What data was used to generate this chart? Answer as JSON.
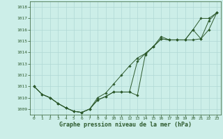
{
  "background_color": "#cceee8",
  "grid_color": "#b0d8d4",
  "line_color": "#2d5a2d",
  "marker_color": "#2d5a2d",
  "xlabel": "Graphe pression niveau de la mer (hPa)",
  "xlabel_fontsize": 6.0,
  "ylim": [
    1008.5,
    1018.5
  ],
  "xlim": [
    -0.5,
    23.5
  ],
  "xticks": [
    0,
    1,
    2,
    3,
    4,
    5,
    6,
    7,
    8,
    9,
    10,
    11,
    12,
    13,
    14,
    15,
    16,
    17,
    18,
    19,
    20,
    21,
    22,
    23
  ],
  "yticks": [
    1009,
    1010,
    1011,
    1012,
    1013,
    1014,
    1015,
    1016,
    1017,
    1018
  ],
  "series": [
    [
      1011.0,
      1010.3,
      1010.0,
      1009.5,
      1009.1,
      1008.8,
      1008.7,
      1009.0,
      1009.8,
      1010.1,
      1010.5,
      1010.5,
      1010.5,
      1010.2,
      1013.8,
      1014.5,
      1015.2,
      1015.1,
      1015.1,
      1015.1,
      1016.0,
      1017.0,
      1017.0,
      1017.5
    ],
    [
      1011.0,
      1010.3,
      1010.0,
      1009.5,
      1009.1,
      1008.8,
      1008.7,
      1009.0,
      1010.0,
      1010.4,
      1011.2,
      1012.0,
      1012.8,
      1013.5,
      1013.9,
      1014.5,
      1015.2,
      1015.1,
      1015.1,
      1015.1,
      1015.1,
      1015.2,
      1016.0,
      1017.5
    ],
    [
      1011.0,
      1010.3,
      1010.0,
      1009.5,
      1009.1,
      1008.8,
      1008.7,
      1009.0,
      1009.8,
      1010.1,
      1010.5,
      1010.5,
      1010.5,
      1013.2,
      1013.9,
      1014.5,
      1015.4,
      1015.1,
      1015.1,
      1015.1,
      1016.0,
      1015.2,
      1016.8,
      1017.5
    ]
  ]
}
